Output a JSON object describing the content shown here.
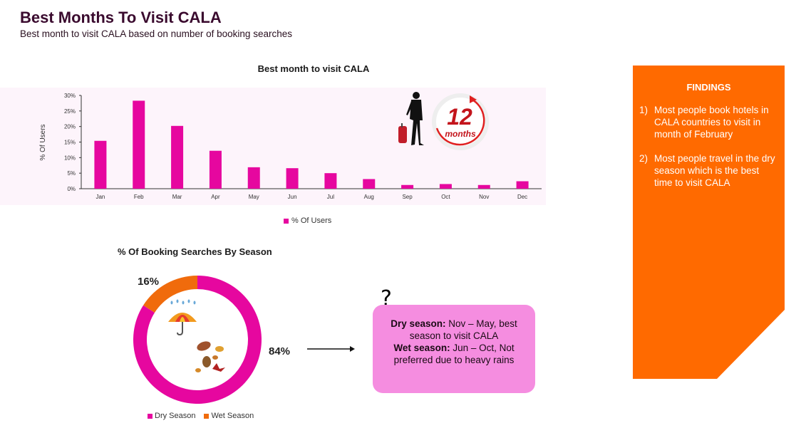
{
  "page": {
    "title": "Best Months To Visit CALA",
    "subtitle": "Best month to visit CALA based on number of booking searches"
  },
  "chart_data": [
    {
      "type": "bar",
      "title": "Best month to visit CALA",
      "ylabel": "% Of Users",
      "xlabel": "",
      "categories": [
        "Jan",
        "Feb",
        "Mar",
        "Apr",
        "May",
        "Jun",
        "Jul",
        "Aug",
        "Sep",
        "Oct",
        "Nov",
        "Dec"
      ],
      "series": [
        {
          "name": "% Of Users",
          "color": "#e6079f",
          "values": [
            15.4,
            28.3,
            20.2,
            12.2,
            6.9,
            6.6,
            5.0,
            3.1,
            1.2,
            1.5,
            1.2,
            2.4
          ]
        }
      ],
      "yticks": [
        "0%",
        "5%",
        "10%",
        "15%",
        "20%",
        "25%",
        "30%"
      ],
      "ylim": [
        0,
        30
      ],
      "legend": "bottom",
      "grid": false
    },
    {
      "type": "pie",
      "title": "% Of Booking Searches By Season",
      "donut": true,
      "slices": [
        {
          "name": "Dry Season",
          "value": 84,
          "label": "84%",
          "color": "#e6079f"
        },
        {
          "name": "Wet Season",
          "value": 16,
          "label": "16%",
          "color": "#f06b0c"
        }
      ],
      "legend": "bottom"
    }
  ],
  "calendar_badge": {
    "number": "12",
    "unit": "months"
  },
  "season_note": {
    "question_mark": "?",
    "dry_label": "Dry season:",
    "dry_text": " Nov – May, best season to visit CALA",
    "wet_label": "Wet season:",
    "wet_text": " Jun – Oct, Not preferred due to heavy rains"
  },
  "findings": {
    "title": "FINDINGS",
    "items": [
      {
        "num": "1)",
        "text": "Most people book hotels in CALA countries to visit in month of February"
      },
      {
        "num": "2)",
        "text": "Most people travel in the dry season which is the best time to visit CALA"
      }
    ]
  },
  "icons": [
    "traveler-icon",
    "calendar-cycle-icon",
    "umbrella-rain-icon",
    "autumn-leaves-icon",
    "arrow-icon"
  ],
  "colors": {
    "accent_magenta": "#e6079f",
    "accent_orange": "#f06b0c",
    "findings_bg": "#ff6a00",
    "note_bg": "#f58de0"
  }
}
